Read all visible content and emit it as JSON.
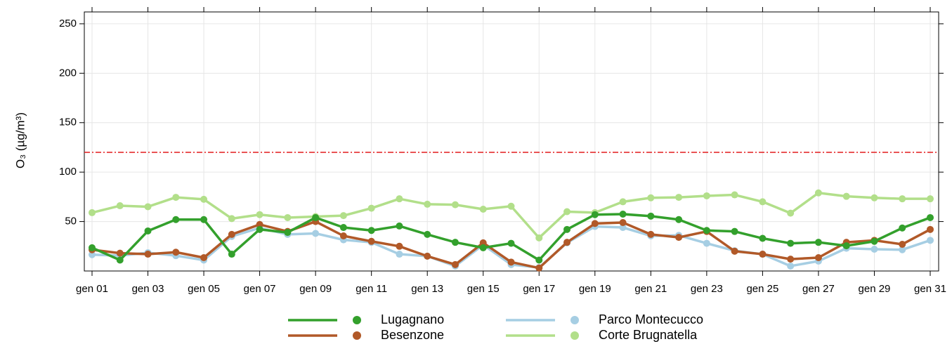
{
  "chart_data": {
    "type": "line",
    "y_label": "O₃ (µg/m³)",
    "categories": [
      "gen 01",
      null,
      "gen 03",
      null,
      "gen 05",
      null,
      "gen 07",
      null,
      "gen 09",
      null,
      "gen 11",
      null,
      "gen 13",
      null,
      "gen 15",
      null,
      "gen 17",
      null,
      "gen 19",
      null,
      "gen 21",
      null,
      "gen 23",
      null,
      "gen 25",
      null,
      "gen 27",
      null,
      "gen 29",
      null,
      "gen 31"
    ],
    "series": [
      {
        "name": "Lugagnano",
        "color": "#33a02c",
        "values": [
          23.5,
          11,
          40.5,
          52,
          52,
          17,
          42,
          39,
          54,
          44,
          41,
          45.5,
          37,
          29,
          23.5,
          28,
          11,
          42,
          57,
          57.5,
          55.5,
          52,
          41,
          40,
          33,
          28,
          29,
          25.5,
          30,
          43.5,
          54
        ]
      },
      {
        "name": "Besenzone",
        "color": "#b15928",
        "values": [
          21.5,
          18,
          17,
          19,
          13.5,
          37,
          47,
          40,
          50,
          35.5,
          30,
          25,
          15,
          6.5,
          28.5,
          9,
          3,
          29,
          48,
          49,
          37,
          34,
          40,
          20,
          17,
          12,
          13.5,
          29,
          31,
          27,
          42
        ]
      },
      {
        "name": "Parco Montecucco",
        "color": "#a6cee3",
        "values": [
          16.5,
          15.5,
          18.5,
          15.5,
          11,
          35,
          43.5,
          37,
          38,
          31.5,
          29,
          17,
          15,
          5,
          26.5,
          6.5,
          3.5,
          28.5,
          45,
          44,
          35.5,
          36,
          28,
          20.5,
          17,
          5,
          10,
          23,
          22,
          21.5,
          31
        ]
      },
      {
        "name": "Corte Brugnatella",
        "color": "#b2df8a",
        "values": [
          59,
          66,
          65,
          74.5,
          72.5,
          53,
          57,
          54,
          55,
          56,
          63.5,
          73,
          67.5,
          67,
          62.5,
          65.5,
          33.5,
          60,
          59,
          70,
          74,
          74.5,
          76,
          77,
          70,
          58.5,
          79,
          75.5,
          74,
          73,
          73
        ]
      }
    ],
    "ylim": [
      0,
      262
    ],
    "yticks": [
      50,
      100,
      150,
      200,
      250
    ],
    "grid": true,
    "reference_line": {
      "value": 120,
      "color": "#e31a1c"
    },
    "legend": "bottom"
  }
}
